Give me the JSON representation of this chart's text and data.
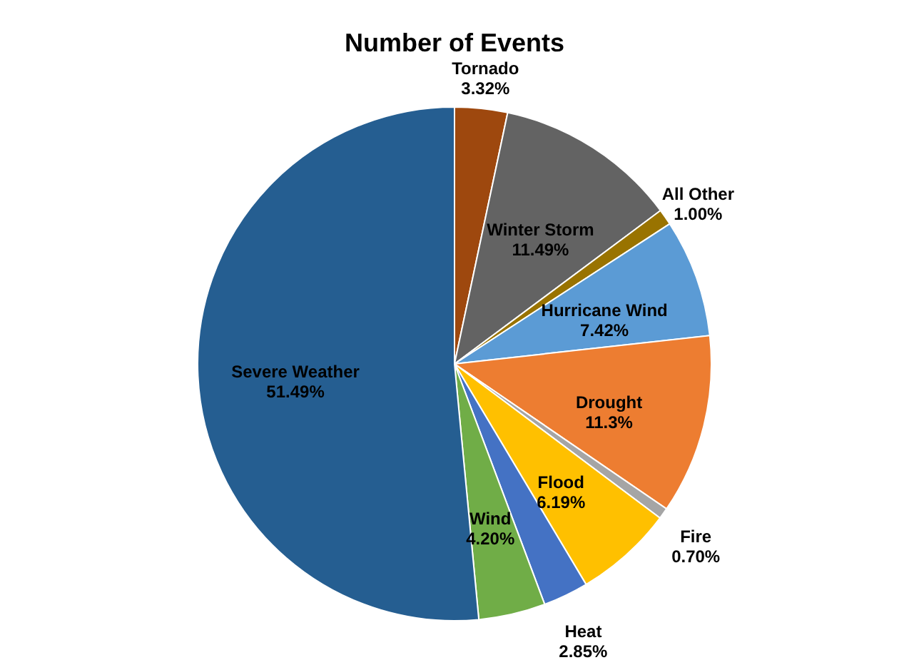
{
  "chart_data": {
    "type": "pie",
    "title": "Number of Events",
    "categories": [
      "Tornado",
      "Winter Storm",
      "All Other",
      "Hurricane Wind",
      "Drought",
      "Fire",
      "Flood",
      "Heat",
      "Wind",
      "Severe Weather"
    ],
    "values": [
      3.32,
      11.49,
      1.0,
      7.42,
      11.3,
      0.7,
      6.19,
      2.85,
      4.2,
      51.49
    ],
    "value_labels": [
      "3.32%",
      "11.49%",
      "1.00%",
      "7.42%",
      "11.3%",
      "0.70%",
      "6.19%",
      "2.85%",
      "4.20%",
      "51.49%"
    ],
    "colors": [
      "#9e480e",
      "#636363",
      "#997300",
      "#5b9bd5",
      "#ed7d31",
      "#a5a5a5",
      "#ffc000",
      "#4472c4",
      "#70ad47",
      "#255e91"
    ],
    "legend": false
  }
}
